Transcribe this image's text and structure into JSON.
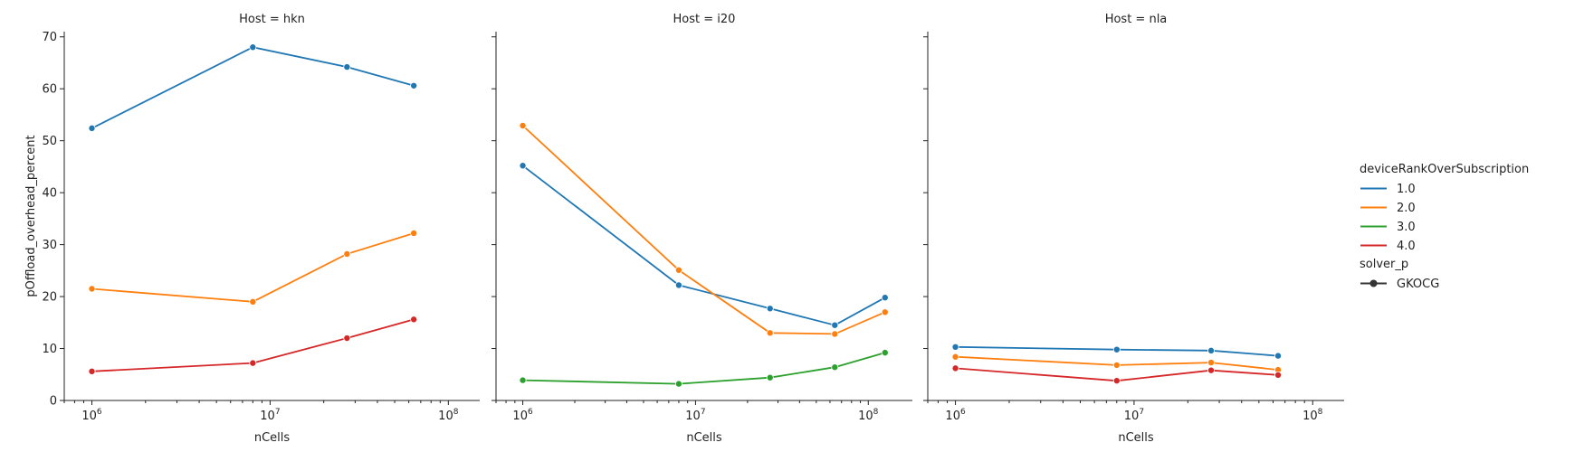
{
  "colors": {
    "1.0": "#1f77b4",
    "2.0": "#ff7f0e",
    "3.0": "#2ca02c",
    "4.0": "#d62728"
  },
  "legend": {
    "hue_title": "deviceRankOverSubscription",
    "hue_entries": [
      "1.0",
      "2.0",
      "3.0",
      "4.0"
    ],
    "style_title": "solver_p",
    "style_entries": [
      "GKOCG"
    ]
  },
  "chart_data": [
    {
      "type": "line",
      "title": "Host = hkn",
      "xlabel": "nCells",
      "ylabel": "pOffload_overhead_percent",
      "xscale": "log",
      "xlim": [
        700000,
        150000000
      ],
      "ylim": [
        0,
        71
      ],
      "yticks": [
        "0",
        "10",
        "20",
        "30",
        "40",
        "50",
        "60",
        "70"
      ],
      "xticks": [
        "10^6",
        "10^7",
        "10^8"
      ],
      "series": [
        {
          "name": "1.0",
          "x": [
            1000000,
            8000000,
            27000000,
            64000000
          ],
          "y": [
            52.4,
            68.0,
            64.2,
            60.6
          ]
        },
        {
          "name": "2.0",
          "x": [
            1000000,
            8000000,
            27000000,
            64000000
          ],
          "y": [
            21.5,
            19.0,
            28.2,
            32.2
          ]
        },
        {
          "name": "4.0",
          "x": [
            1000000,
            8000000,
            27000000,
            64000000
          ],
          "y": [
            5.6,
            7.2,
            12.0,
            15.6
          ]
        }
      ]
    },
    {
      "type": "line",
      "title": "Host = i20",
      "xlabel": "nCells",
      "ylabel": "",
      "xscale": "log",
      "xlim": [
        700000,
        180000000
      ],
      "ylim": [
        0,
        71
      ],
      "yticks": [],
      "xticks": [
        "10^6",
        "10^7",
        "10^8"
      ],
      "series": [
        {
          "name": "1.0",
          "x": [
            1000000,
            8000000,
            27000000,
            64000000,
            125000000
          ],
          "y": [
            45.2,
            22.2,
            17.7,
            14.5,
            19.8
          ]
        },
        {
          "name": "2.0",
          "x": [
            1000000,
            8000000,
            27000000,
            64000000,
            125000000
          ],
          "y": [
            52.9,
            25.1,
            13.0,
            12.8,
            17.0
          ]
        },
        {
          "name": "3.0",
          "x": [
            1000000,
            8000000,
            27000000,
            64000000,
            125000000
          ],
          "y": [
            3.9,
            3.2,
            4.4,
            6.4,
            9.2
          ]
        }
      ]
    },
    {
      "type": "line",
      "title": "Host = nla",
      "xlabel": "nCells",
      "ylabel": "",
      "xscale": "log",
      "xlim": [
        700000,
        150000000
      ],
      "ylim": [
        0,
        71
      ],
      "yticks": [],
      "xticks": [
        "10^6",
        "10^7",
        "10^8"
      ],
      "series": [
        {
          "name": "1.0",
          "x": [
            1000000,
            8000000,
            27000000,
            64000000
          ],
          "y": [
            10.3,
            9.8,
            9.6,
            8.6
          ]
        },
        {
          "name": "2.0",
          "x": [
            1000000,
            8000000,
            27000000,
            64000000
          ],
          "y": [
            8.4,
            6.8,
            7.3,
            5.9
          ]
        },
        {
          "name": "4.0",
          "x": [
            1000000,
            8000000,
            27000000,
            64000000
          ],
          "y": [
            6.2,
            3.8,
            5.8,
            4.9
          ]
        }
      ]
    }
  ]
}
